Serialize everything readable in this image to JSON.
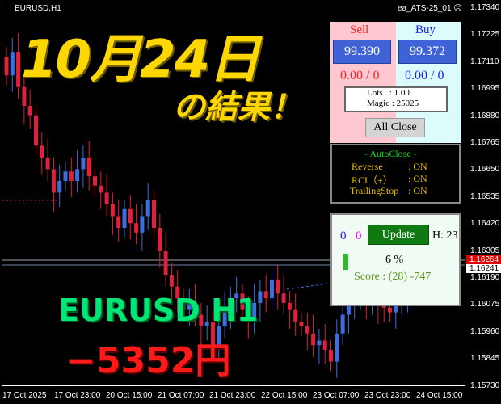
{
  "chart": {
    "symbol": "EURUSD,H1",
    "ea_name": "ea_ATS-25_01",
    "ea_status_icon": "sad-face-icon",
    "up_color": "#3c6ee0",
    "down_color": "#e0203c",
    "price_axis": [
      "1.17340",
      "1.17225",
      "1.17110",
      "1.16995",
      "1.16880",
      "1.16765",
      "1.16650",
      "1.16535",
      "1.16420",
      "1.16305",
      "1.16190",
      "1.16075",
      "1.15960",
      "1.15845",
      "1.15730"
    ],
    "bid_label": "1.16264",
    "current_price_label": "1.16241",
    "time_axis": [
      "17 Oct 2025",
      "17 Oct 23:00",
      "20 Oct 15:00",
      "21 Oct 07:00",
      "21 Oct 23:00",
      "22 Oct 15:00",
      "23 Oct 07:00",
      "23 Oct 23:00",
      "24 Oct 15:00"
    ],
    "closes": [
      1.1705,
      1.1715,
      1.17,
      1.1692,
      1.1688,
      1.1675,
      1.167,
      1.1665,
      1.1655,
      1.166,
      1.1664,
      1.166,
      1.1665,
      1.167,
      1.1662,
      1.1658,
      1.1655,
      1.165,
      1.1645,
      1.164,
      1.1648,
      1.1642,
      1.1638,
      1.1645,
      1.1652,
      1.164,
      1.163,
      1.162,
      1.1615,
      1.161,
      1.1605,
      1.1608,
      1.1603,
      1.1598,
      1.16,
      1.159,
      1.1598,
      1.1605,
      1.161,
      1.1612,
      1.1605,
      1.16,
      1.1608,
      1.1613,
      1.161,
      1.1618,
      1.1612,
      1.1608,
      1.1605,
      1.16,
      1.1598,
      1.1595,
      1.159,
      1.1592,
      1.1588,
      1.1583,
      1.1595,
      1.1603,
      1.1607,
      1.1609,
      1.161,
      1.1608,
      1.161,
      1.1607,
      1.1606,
      1.1604,
      1.1608,
      1.1612,
      1.1618,
      1.1624
    ]
  },
  "overlay": {
    "date_title": "10月24日",
    "result_title": "の結果！",
    "pair_tf": "EURUSD H1",
    "profit": "−5352円"
  },
  "panel": {
    "sell_title": "Sell",
    "buy_title": "Buy",
    "sell_price": "99.390",
    "buy_price": "99.372",
    "sell_pl": "0.00 / 0",
    "buy_pl": "0.00 / 0",
    "lots": "Lots   : 1.00",
    "magic": "Magic : 25025",
    "all_close": "All Close"
  },
  "autoclose": {
    "title": "- AutoClose -",
    "rows": [
      {
        "label": "Reverse",
        "value": ": ON"
      },
      {
        "label": "RCI（+）",
        "value": ": ON"
      },
      {
        "label": "TrailingStop",
        "value": ": ON"
      }
    ]
  },
  "status": {
    "count_blue": "0",
    "count_magenta": "0",
    "update": "Update",
    "hour": "H: 23",
    "percent_text": "6 %",
    "progress": 0.06,
    "score": "Score : (28) -747"
  }
}
